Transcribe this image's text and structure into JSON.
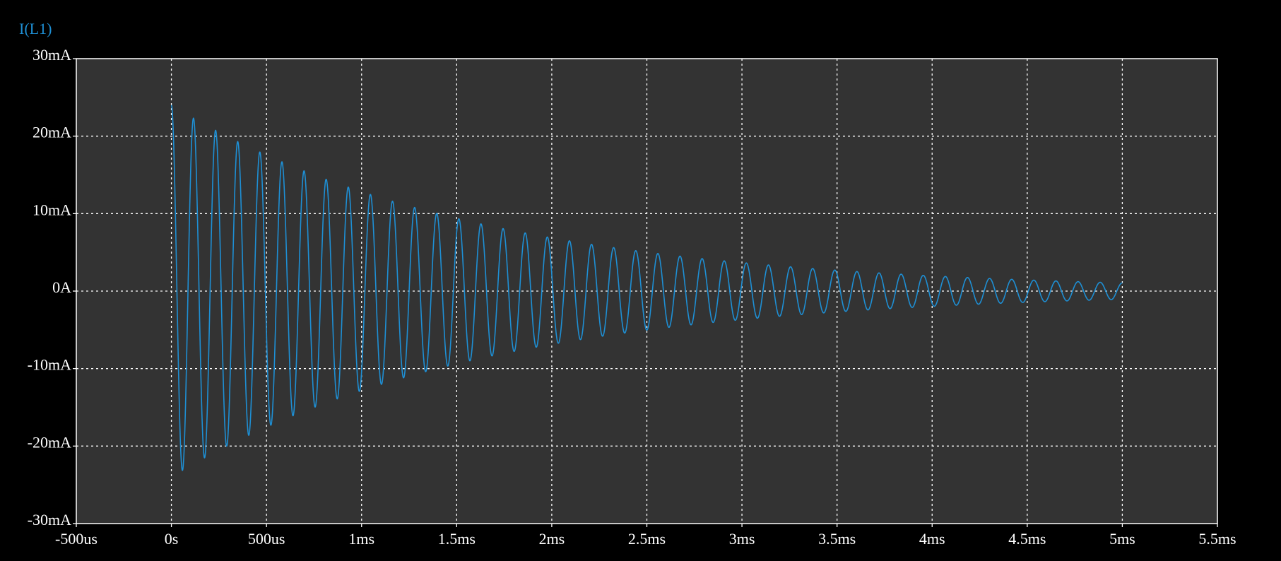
{
  "chart_data": {
    "type": "line",
    "title": "",
    "series": [
      {
        "name": "I(L1)",
        "color": "#1e8fd4",
        "model": "damped_sine",
        "amplitude_mA": 24,
        "frequency_hz": 8600,
        "decay_time_constant_s": 0.0016,
        "phase": "cosine",
        "t_start_s": 0,
        "t_end_s": 0.005
      }
    ],
    "xlabel": "",
    "ylabel": "",
    "xlim": [
      -0.0005,
      0.0055
    ],
    "ylim": [
      -30,
      30
    ],
    "x_ticks": [
      {
        "value": -0.0005,
        "label": "-500us"
      },
      {
        "value": 0,
        "label": "0s"
      },
      {
        "value": 0.0005,
        "label": "500us"
      },
      {
        "value": 0.001,
        "label": "1ms"
      },
      {
        "value": 0.0015,
        "label": "1.5ms"
      },
      {
        "value": 0.002,
        "label": "2ms"
      },
      {
        "value": 0.0025,
        "label": "2.5ms"
      },
      {
        "value": 0.003,
        "label": "3ms"
      },
      {
        "value": 0.0035,
        "label": "3.5ms"
      },
      {
        "value": 0.004,
        "label": "4ms"
      },
      {
        "value": 0.0045,
        "label": "4.5ms"
      },
      {
        "value": 0.005,
        "label": "5ms"
      },
      {
        "value": 0.0055,
        "label": "5.5ms"
      }
    ],
    "y_ticks": [
      {
        "value": 30,
        "label": "30mA"
      },
      {
        "value": 20,
        "label": "20mA"
      },
      {
        "value": 10,
        "label": "10mA"
      },
      {
        "value": 0,
        "label": "0A"
      },
      {
        "value": -10,
        "label": "-10mA"
      },
      {
        "value": -20,
        "label": "-20mA"
      },
      {
        "value": -30,
        "label": "-30mA"
      }
    ],
    "grid": true,
    "colors": {
      "background": "#000000",
      "plot_area": "#333333",
      "axis": "#ffffff",
      "grid": "#ffffff",
      "text": "#ffffff"
    }
  }
}
